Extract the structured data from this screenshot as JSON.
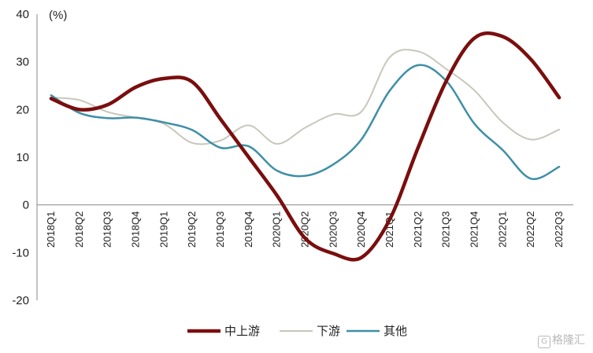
{
  "chart_data": {
    "type": "line",
    "unit_label": "(%)",
    "categories": [
      "2018Q1",
      "2018Q2",
      "2018Q3",
      "2018Q4",
      "2019Q1",
      "2019Q2",
      "2019Q3",
      "2019Q4",
      "2020Q1",
      "2020Q2",
      "2020Q3",
      "2020Q4",
      "2021Q1",
      "2021Q2",
      "2021Q3",
      "2021Q4",
      "2022Q1",
      "2022Q2",
      "2022Q3"
    ],
    "ylim": [
      -20,
      40
    ],
    "yticks": [
      -20,
      -10,
      0,
      10,
      20,
      30,
      40
    ],
    "grid": false,
    "legend_position": "bottom",
    "series": [
      {
        "name": "中上游",
        "color": "#7a0e0e",
        "width": 4.5,
        "values": [
          22.3,
          20.0,
          21.0,
          24.7,
          26.5,
          25.8,
          18.0,
          10.0,
          2.0,
          -7.0,
          -10.2,
          -11.0,
          -3.0,
          12.0,
          26.0,
          35.0,
          35.3,
          30.5,
          22.5
        ]
      },
      {
        "name": "下游",
        "color": "#c8c7bc",
        "width": 2,
        "values": [
          22.5,
          22.0,
          19.5,
          18.3,
          17.0,
          13.0,
          13.5,
          16.7,
          12.8,
          16.2,
          19.0,
          19.6,
          31.0,
          32.2,
          28.5,
          24.0,
          17.3,
          13.7,
          15.8
        ]
      },
      {
        "name": "其他",
        "color": "#3f8fa6",
        "width": 2.5,
        "values": [
          23.0,
          19.3,
          18.2,
          18.3,
          17.3,
          15.7,
          12.0,
          12.3,
          7.2,
          6.1,
          8.5,
          13.8,
          24.0,
          29.3,
          26.0,
          17.0,
          11.5,
          5.5,
          8.0
        ]
      }
    ]
  },
  "watermark": {
    "icon": "G",
    "text": "格隆汇"
  }
}
